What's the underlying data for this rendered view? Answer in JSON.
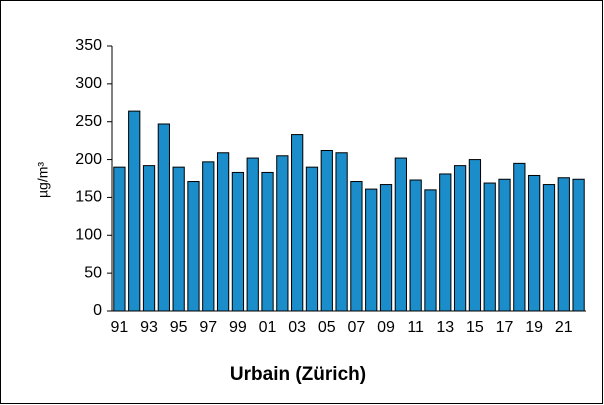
{
  "chart_data": {
    "type": "bar",
    "title": "Urbain (Zürich)",
    "y_label": "µg/m³",
    "categories": [
      "91",
      null,
      "93",
      null,
      "95",
      null,
      "97",
      null,
      "99",
      null,
      "01",
      null,
      "03",
      null,
      "05",
      null,
      "07",
      null,
      "09",
      null,
      "11",
      null,
      "13",
      null,
      "15",
      null,
      "17",
      null,
      "19",
      null,
      "21",
      null
    ],
    "values": [
      190,
      264,
      192,
      247,
      190,
      171,
      197,
      209,
      183,
      202,
      183,
      205,
      233,
      190,
      212,
      209,
      171,
      161,
      167,
      202,
      173,
      160,
      181,
      192,
      200,
      169,
      174,
      195,
      179,
      167,
      176,
      174
    ],
    "color": "#1b8dcb",
    "ylim": [
      0,
      350
    ],
    "yticks": [
      0,
      50,
      100,
      150,
      200,
      250,
      300,
      350
    ],
    "grid": false
  }
}
